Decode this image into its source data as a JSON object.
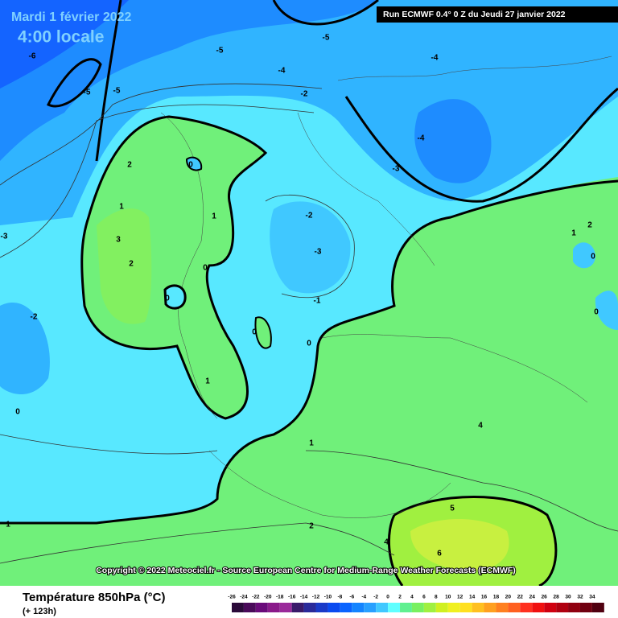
{
  "header": {
    "date": "Mardi 1 février 2022",
    "time": "4:00 locale",
    "run": "Run ECMWF 0.4° 0 Z du Jeudi 27 janvier 2022"
  },
  "copyright": "Copyright © 2022 Meteociel.fr - Source European Centre for Medium-Range Weather Forecasts (ECMWF)",
  "legend": {
    "title": "Température 850hPa (°C)",
    "lead": "(+ 123h)",
    "ticks": [
      -26,
      -24,
      -22,
      -20,
      -18,
      -16,
      -14,
      -12,
      -10,
      -8,
      -6,
      -4,
      -2,
      0,
      2,
      4,
      6,
      8,
      10,
      12,
      14,
      16,
      18,
      20,
      22,
      24,
      26,
      28,
      30,
      32,
      34
    ],
    "colors": [
      "#2b0a3a",
      "#4a0a5a",
      "#6a0a7a",
      "#8a1a8a",
      "#9a2a9a",
      "#3a1a6a",
      "#2a2a9a",
      "#1a3ac8",
      "#0a4af0",
      "#0a64ff",
      "#1484ff",
      "#28a0ff",
      "#40c8ff",
      "#60ffff",
      "#60f090",
      "#78f060",
      "#a0f040",
      "#d0f020",
      "#f0f020",
      "#ffe020",
      "#ffc020",
      "#ffa020",
      "#ff8020",
      "#ff6020",
      "#ff3020",
      "#f01010",
      "#d00010",
      "#b00010",
      "#900010",
      "#700010",
      "#500010"
    ]
  },
  "contour_labels": [
    "-6",
    "-5",
    "-5",
    "-5",
    "-5",
    "-4",
    "-2",
    "-4",
    "-4",
    "-3",
    "-2",
    "-3",
    "-1",
    "0",
    "0",
    "0",
    "0",
    "2",
    "1",
    "1",
    "3",
    "2",
    "0",
    "1",
    "-3",
    "-2",
    "0",
    "1",
    "2",
    "1",
    "4",
    "5",
    "6",
    "4",
    "2",
    "1",
    "0",
    "0"
  ]
}
